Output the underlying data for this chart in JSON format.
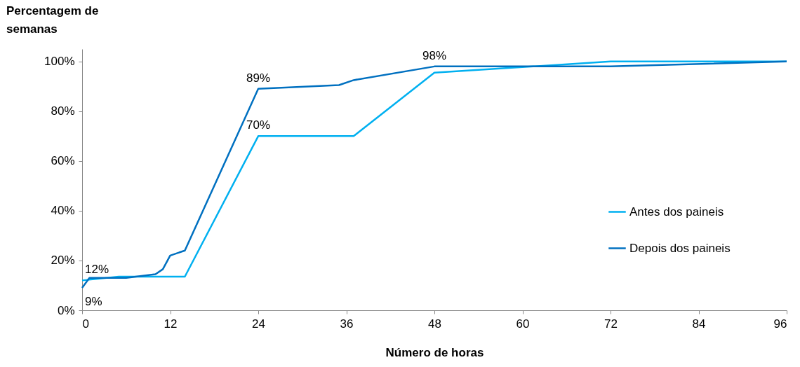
{
  "chart_data": {
    "type": "line",
    "ylabel": "Percentagem de semanas",
    "xlabel": "Número de horas",
    "xlim": [
      0,
      96
    ],
    "xticks": [
      0,
      12,
      24,
      36,
      48,
      60,
      72,
      84,
      96
    ],
    "ylim": [
      0,
      105
    ],
    "yticks": [
      {
        "value": 0,
        "label": "0%"
      },
      {
        "value": 20,
        "label": "20%"
      },
      {
        "value": 40,
        "label": "40%"
      },
      {
        "value": 60,
        "label": "60%"
      },
      {
        "value": 80,
        "label": "80%"
      },
      {
        "value": 100,
        "label": "100%"
      }
    ],
    "grid": false,
    "legend": "bottom right",
    "marker": "none",
    "line_style": "solid",
    "series": [
      {
        "name": "Antes dos paineis",
        "color": "#00b0f0",
        "x": [
          0,
          5,
          14,
          24,
          37,
          48,
          72,
          96
        ],
        "values": [
          12,
          13.5,
          13.5,
          70,
          70,
          95.5,
          100,
          100
        ],
        "value_labels": [
          "12%",
          null,
          null,
          "70%",
          null,
          null,
          null,
          null
        ]
      },
      {
        "name": "Depois dos paineis",
        "color": "#0070c0",
        "x": [
          0,
          1,
          6,
          10,
          11,
          12,
          14,
          24,
          35,
          37,
          48,
          72,
          96
        ],
        "values": [
          9,
          13,
          13,
          14.5,
          16.5,
          22,
          24,
          89,
          90.5,
          92.5,
          98,
          98,
          100
        ],
        "value_labels": [
          "9%",
          null,
          null,
          null,
          null,
          null,
          null,
          "89%",
          null,
          null,
          "98%",
          null,
          null
        ]
      }
    ]
  }
}
